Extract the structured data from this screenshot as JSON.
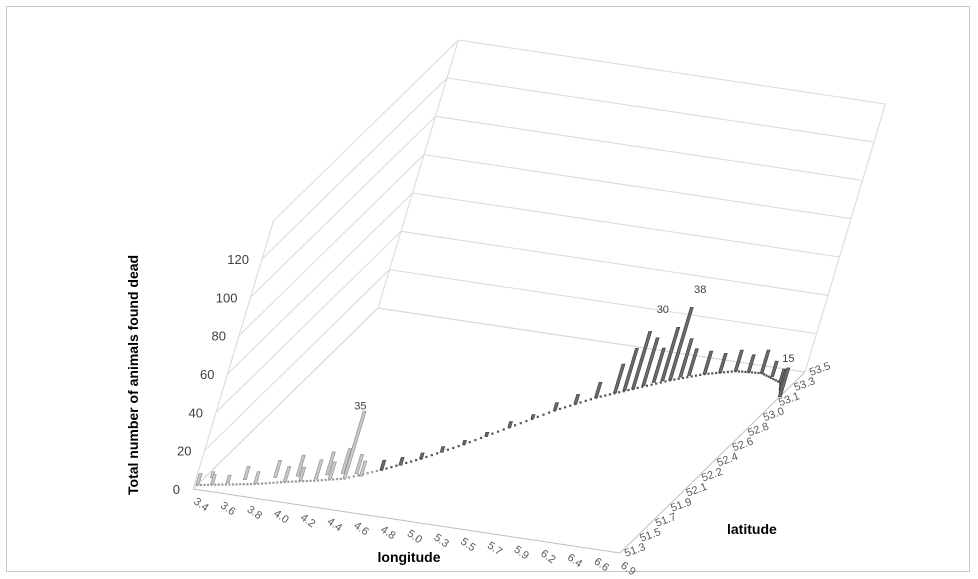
{
  "chart_data": {
    "type": "bar3d",
    "title": "",
    "xlabel": "longitude",
    "ylabel": "latitude",
    "zlabel": "Total number of animals found dead",
    "x_ticks": [
      "3.4",
      "3.6",
      "3.8",
      "4.0",
      "4.2",
      "4.4",
      "4.6",
      "4.8",
      "5.0",
      "5.3",
      "5.5",
      "5.7",
      "5.9",
      "6.2",
      "6.4",
      "6.6",
      "6.9"
    ],
    "y_ticks": [
      "51.3",
      "51.5",
      "51.7",
      "51.9",
      "52.1",
      "52.2",
      "52.4",
      "52.6",
      "52.8",
      "53.0",
      "53.1",
      "53.3",
      "53.5"
    ],
    "z_ticks": [
      "0",
      "20",
      "40",
      "60",
      "80",
      "100",
      "120"
    ],
    "zlim": [
      0,
      120
    ],
    "grid": true,
    "annotations": [
      {
        "label": "35",
        "x": 4.4,
        "y": 51.6,
        "value": 35
      },
      {
        "label": "30",
        "x": 5.8,
        "y": 53.2,
        "value": 30
      },
      {
        "label": "38",
        "x": 6.0,
        "y": 53.3,
        "value": 38
      },
      {
        "label": "15",
        "x": 6.9,
        "y": 53.2,
        "value": 15
      }
    ],
    "coastline_points": [
      [
        3.4,
        51.35
      ],
      [
        3.6,
        51.4
      ],
      [
        3.8,
        51.45
      ],
      [
        4.0,
        51.52
      ],
      [
        4.2,
        51.58
      ],
      [
        4.4,
        51.65
      ],
      [
        4.6,
        51.8
      ],
      [
        4.8,
        51.98
      ],
      [
        5.0,
        52.2
      ],
      [
        5.2,
        52.45
      ],
      [
        5.4,
        52.7
      ],
      [
        5.6,
        52.9
      ],
      [
        5.8,
        53.05
      ],
      [
        6.0,
        53.2
      ],
      [
        6.2,
        53.32
      ],
      [
        6.4,
        53.4
      ],
      [
        6.6,
        53.42
      ],
      [
        6.8,
        53.35
      ],
      [
        6.9,
        53.2
      ]
    ],
    "series": [
      {
        "values": [
          {
            "x": 3.4,
            "y": 51.35,
            "v": 6
          },
          {
            "x": 3.45,
            "y": 51.45,
            "v": 3
          },
          {
            "x": 3.5,
            "y": 51.38,
            "v": 5
          },
          {
            "x": 3.6,
            "y": 51.42,
            "v": 4
          },
          {
            "x": 3.7,
            "y": 51.48,
            "v": 7
          },
          {
            "x": 3.8,
            "y": 51.46,
            "v": 6
          },
          {
            "x": 3.9,
            "y": 51.55,
            "v": 9
          },
          {
            "x": 4.0,
            "y": 51.52,
            "v": 8
          },
          {
            "x": 4.05,
            "y": 51.6,
            "v": 11
          },
          {
            "x": 4.1,
            "y": 51.56,
            "v": 7
          },
          {
            "x": 4.2,
            "y": 51.6,
            "v": 10
          },
          {
            "x": 4.25,
            "y": 51.66,
            "v": 12
          },
          {
            "x": 4.3,
            "y": 51.62,
            "v": 9
          },
          {
            "x": 4.35,
            "y": 51.7,
            "v": 13
          },
          {
            "x": 4.4,
            "y": 51.65,
            "v": 35
          },
          {
            "x": 4.45,
            "y": 51.72,
            "v": 10
          },
          {
            "x": 4.5,
            "y": 51.7,
            "v": 8
          },
          {
            "x": 4.6,
            "y": 51.8,
            "v": 5
          },
          {
            "x": 4.7,
            "y": 51.88,
            "v": 4
          },
          {
            "x": 4.8,
            "y": 51.98,
            "v": 3
          },
          {
            "x": 4.9,
            "y": 52.08,
            "v": 3
          },
          {
            "x": 5.0,
            "y": 52.2,
            "v": 2
          },
          {
            "x": 5.1,
            "y": 52.32,
            "v": 2
          },
          {
            "x": 5.2,
            "y": 52.45,
            "v": 3
          },
          {
            "x": 5.3,
            "y": 52.58,
            "v": 2
          },
          {
            "x": 5.4,
            "y": 52.7,
            "v": 4
          },
          {
            "x": 5.5,
            "y": 52.8,
            "v": 5
          },
          {
            "x": 5.6,
            "y": 52.9,
            "v": 8
          },
          {
            "x": 5.7,
            "y": 52.98,
            "v": 15
          },
          {
            "x": 5.75,
            "y": 53.02,
            "v": 22
          },
          {
            "x": 5.8,
            "y": 53.05,
            "v": 30
          },
          {
            "x": 5.85,
            "y": 53.1,
            "v": 25
          },
          {
            "x": 5.9,
            "y": 53.15,
            "v": 18
          },
          {
            "x": 5.95,
            "y": 53.18,
            "v": 28
          },
          {
            "x": 6.0,
            "y": 53.2,
            "v": 38
          },
          {
            "x": 6.05,
            "y": 53.25,
            "v": 20
          },
          {
            "x": 6.1,
            "y": 53.28,
            "v": 14
          },
          {
            "x": 6.2,
            "y": 53.32,
            "v": 12
          },
          {
            "x": 6.3,
            "y": 53.36,
            "v": 10
          },
          {
            "x": 6.4,
            "y": 53.4,
            "v": 11
          },
          {
            "x": 6.5,
            "y": 53.41,
            "v": 9
          },
          {
            "x": 6.6,
            "y": 53.42,
            "v": 12
          },
          {
            "x": 6.7,
            "y": 53.4,
            "v": 8
          },
          {
            "x": 6.8,
            "y": 53.35,
            "v": 7
          },
          {
            "x": 6.85,
            "y": 53.28,
            "v": 10
          },
          {
            "x": 6.9,
            "y": 53.2,
            "v": 15
          }
        ]
      }
    ]
  }
}
